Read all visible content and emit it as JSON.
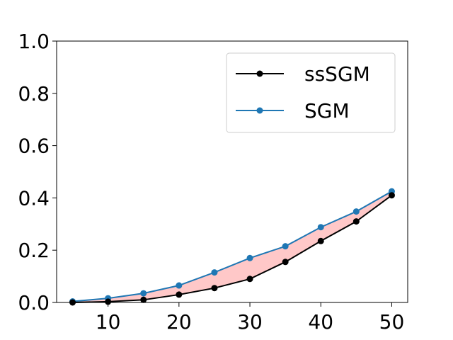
{
  "chart_data": {
    "type": "line",
    "title": "",
    "xlabel": "",
    "ylabel": "",
    "x": [
      5,
      10,
      15,
      20,
      25,
      30,
      35,
      40,
      45,
      50
    ],
    "xlim": [
      2.75,
      52.25
    ],
    "ylim": [
      0,
      1.0
    ],
    "xticks": [
      10,
      20,
      30,
      40,
      50
    ],
    "yticks": [
      0.0,
      0.2,
      0.4,
      0.6,
      0.8,
      1.0
    ],
    "xtick_labels": [
      "10",
      "20",
      "30",
      "40",
      "50"
    ],
    "ytick_labels": [
      "0.0",
      "0.2",
      "0.4",
      "0.6",
      "0.8",
      "1.0"
    ],
    "grid": false,
    "legend_position": "top-right",
    "series": [
      {
        "name": "ssSGM",
        "color": "#000000",
        "marker": "circle",
        "values": [
          0.0,
          0.003,
          0.01,
          0.03,
          0.055,
          0.09,
          0.155,
          0.235,
          0.31,
          0.41
        ]
      },
      {
        "name": "SGM",
        "color": "#1f77b4",
        "marker": "circle",
        "values": [
          0.004,
          0.016,
          0.035,
          0.065,
          0.115,
          0.17,
          0.215,
          0.288,
          0.348,
          0.425
        ]
      }
    ],
    "fill_between": {
      "color": "#ffc8c8",
      "between": [
        "ssSGM",
        "SGM"
      ]
    }
  }
}
